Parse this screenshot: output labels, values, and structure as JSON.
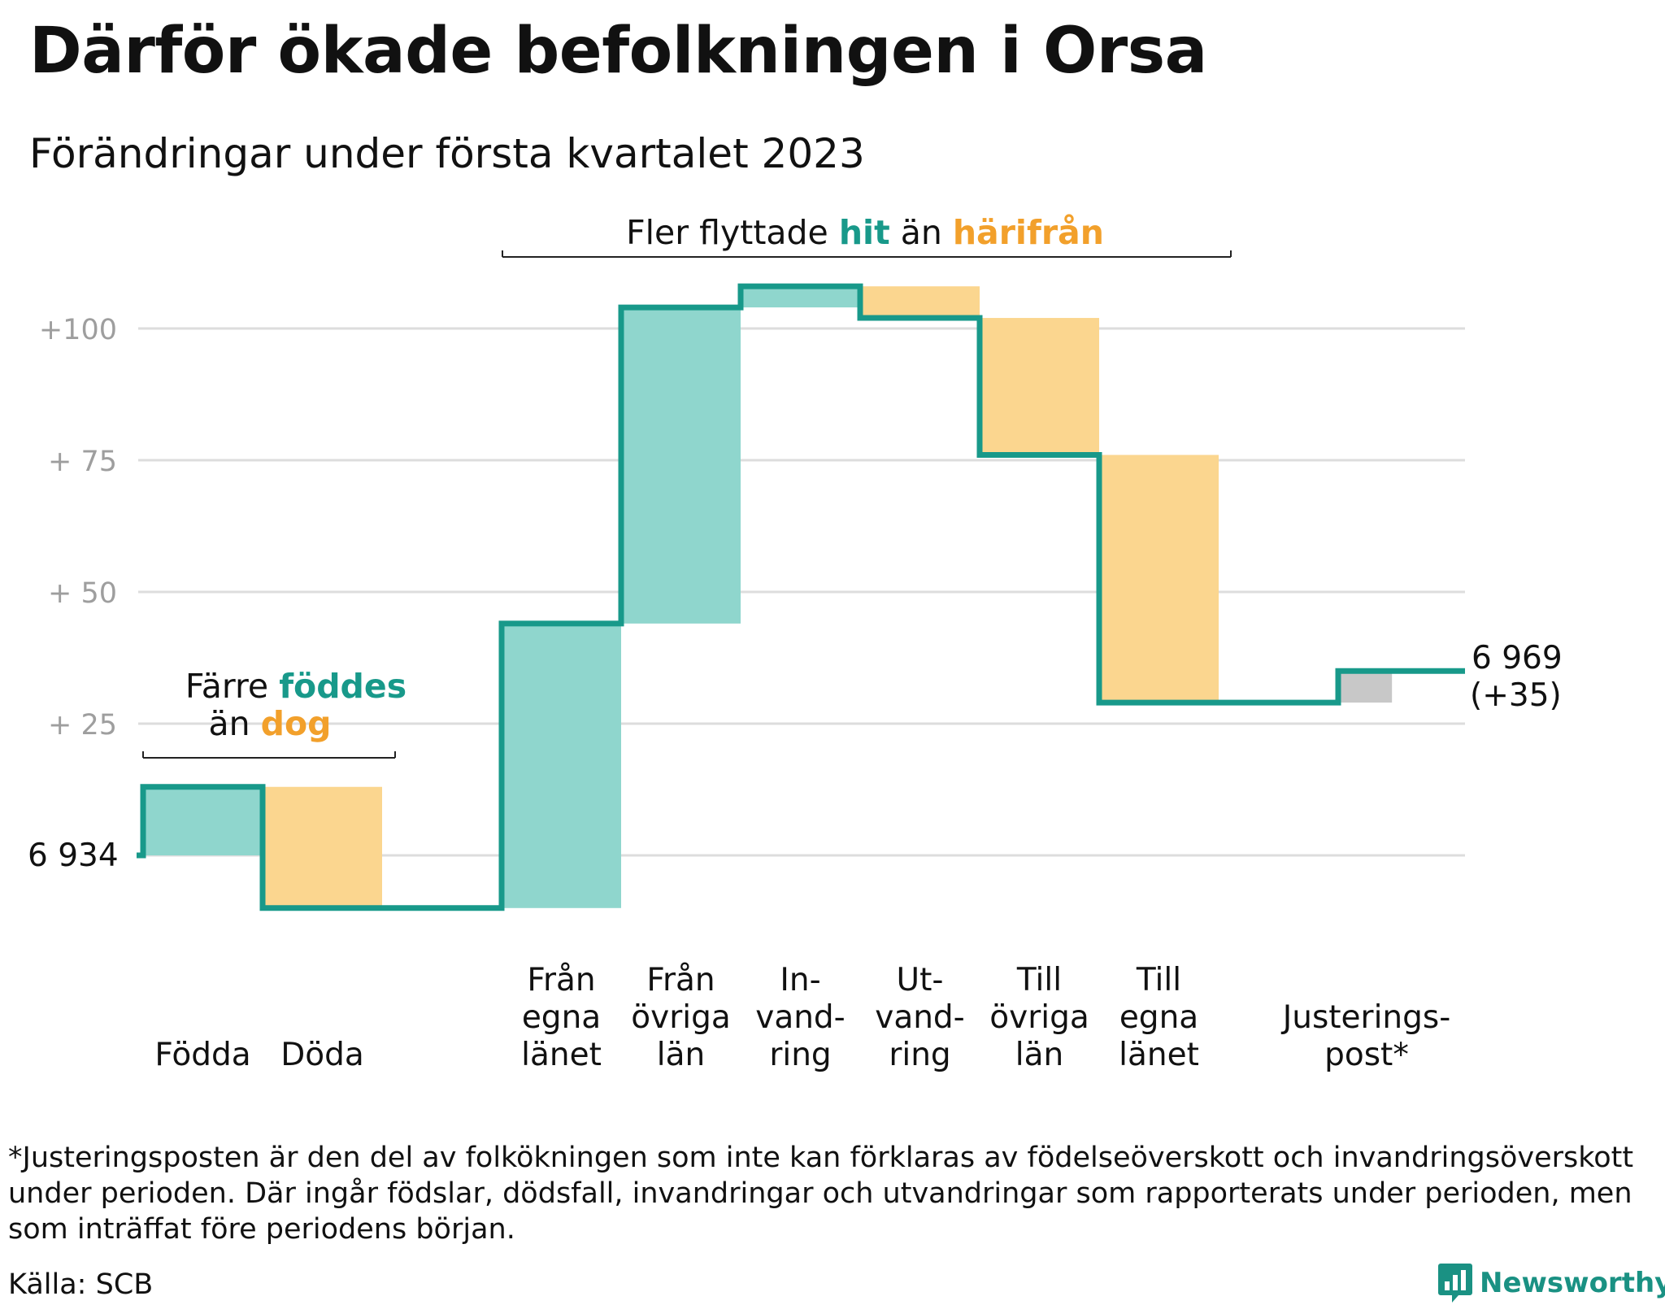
{
  "title": "Därför ökade befolkningen i Orsa",
  "subtitle": "Förändringar under första kvartalet 2023",
  "colors": {
    "step_line": "#18998a",
    "increase_fill": "#8fd6cd",
    "decrease_fill": "#fbd68f",
    "adjustment_fill": "#c8c8c8",
    "gridline": "#dddddd",
    "tick_label": "#9e9e9e",
    "teal_text": "#18998a",
    "orange_text": "#f2a02b"
  },
  "annotations": {
    "natural": {
      "prefix": "Färre ",
      "highlight1": "föddes",
      "mid": "än ",
      "highlight2": "dog"
    },
    "migration": {
      "prefix": "Fler flyttade ",
      "highlight1": "hit",
      "mid": " än ",
      "highlight2": "härifrån"
    }
  },
  "chart_data": {
    "type": "waterfall",
    "start_label": "6 934",
    "end_label_line1": "6 969",
    "end_label_line2": "(+35)",
    "y_ticks": [
      {
        "value": 25,
        "label": "+ 25"
      },
      {
        "value": 50,
        "label": "+ 50"
      },
      {
        "value": 75,
        "label": "+ 75"
      },
      {
        "value": 100,
        "label": "+100"
      }
    ],
    "grid": true,
    "y_range": [
      -10,
      110
    ],
    "steps": [
      {
        "label_lines": [
          "Födda"
        ],
        "start": 0,
        "end": 13,
        "kind": "increase"
      },
      {
        "label_lines": [
          "Döda"
        ],
        "start": 13,
        "end": -10,
        "kind": "decrease"
      },
      {
        "label_lines": [],
        "start": -10,
        "end": -10,
        "kind": "none"
      },
      {
        "label_lines": [
          "Från",
          "egna",
          "länet"
        ],
        "start": -10,
        "end": 44,
        "kind": "increase"
      },
      {
        "label_lines": [
          "Från",
          "övriga",
          "län"
        ],
        "start": 44,
        "end": 104,
        "kind": "increase"
      },
      {
        "label_lines": [
          "In-",
          "vand-",
          "ring"
        ],
        "start": 104,
        "end": 108,
        "kind": "increase"
      },
      {
        "label_lines": [
          "Ut-",
          "vand-",
          "ring"
        ],
        "start": 108,
        "end": 102,
        "kind": "decrease"
      },
      {
        "label_lines": [
          "Till",
          "övriga",
          "län"
        ],
        "start": 102,
        "end": 76,
        "kind": "decrease"
      },
      {
        "label_lines": [
          "Till",
          "egna",
          "länet"
        ],
        "start": 76,
        "end": 29,
        "kind": "decrease"
      },
      {
        "label_lines": [],
        "start": 29,
        "end": 29,
        "kind": "none"
      },
      {
        "label_lines": [
          "Justerings-",
          "post*"
        ],
        "start": 29,
        "end": 35,
        "kind": "adjustment"
      }
    ],
    "final_value": 35
  },
  "footnote": "*Justeringsposten är den del av folkökningen som inte kan förklaras av födelseöverskott och invandringsöverskott under perioden. Där ingår födslar, dödsfall, invandringar och utvandringar som rapporterats under perioden, men som inträffat före periodens början.",
  "source": "Källa: SCB",
  "logo": {
    "text": "Newsworthy",
    "icon": "bar-chart-speech-bubble-icon"
  }
}
